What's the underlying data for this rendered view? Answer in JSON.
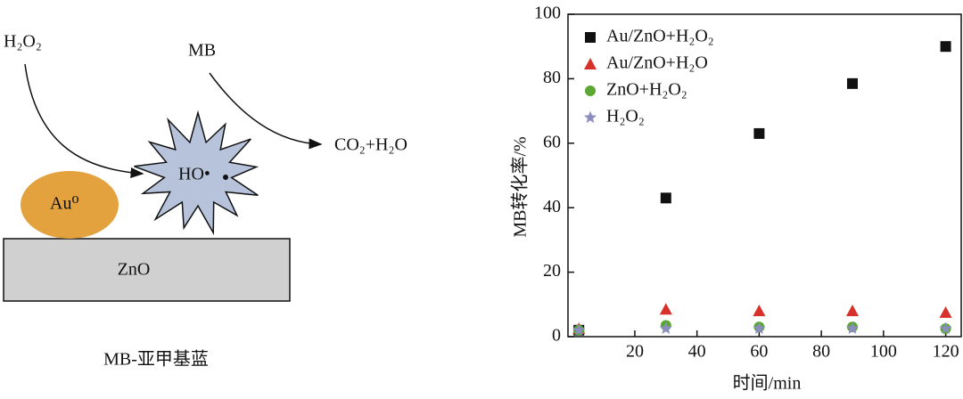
{
  "diagram": {
    "reactant": "H₂O₂",
    "pollutant": "MB",
    "product": "CO₂+H₂O",
    "radical": "HO•",
    "metal": "Au⁰",
    "support": "ZnO",
    "caption": "MB-亚甲基蓝"
  },
  "chart_data": {
    "type": "scatter",
    "x": [
      2,
      30,
      60,
      90,
      120
    ],
    "series": [
      {
        "name": "Au/ZnO+H₂O₂",
        "color": "#111111",
        "marker": "square",
        "values": [
          2,
          43,
          63,
          78.5,
          90
        ]
      },
      {
        "name": "Au/ZnO+H₂O",
        "color": "#d8302a",
        "marker": "triangle",
        "values": [
          2.5,
          8.5,
          8,
          8,
          7.5
        ]
      },
      {
        "name": "ZnO+H₂O₂",
        "color": "#5aa832",
        "marker": "circle",
        "values": [
          2,
          3.5,
          3,
          3,
          2.5
        ]
      },
      {
        "name": "H₂O₂",
        "color": "#8b8cc0",
        "marker": "star",
        "values": [
          2,
          2.5,
          2.5,
          2.5,
          2.5
        ]
      }
    ],
    "xlabel": "时间/min",
    "ylabel": "MB转化率/%",
    "xlim": [
      -1.5,
      125
    ],
    "ylim": [
      0,
      100
    ],
    "xticks": [
      20,
      40,
      60,
      80,
      100,
      120
    ],
    "yticks": [
      0,
      20,
      40,
      60,
      80,
      100
    ],
    "legend": "upper left",
    "grid": false
  }
}
